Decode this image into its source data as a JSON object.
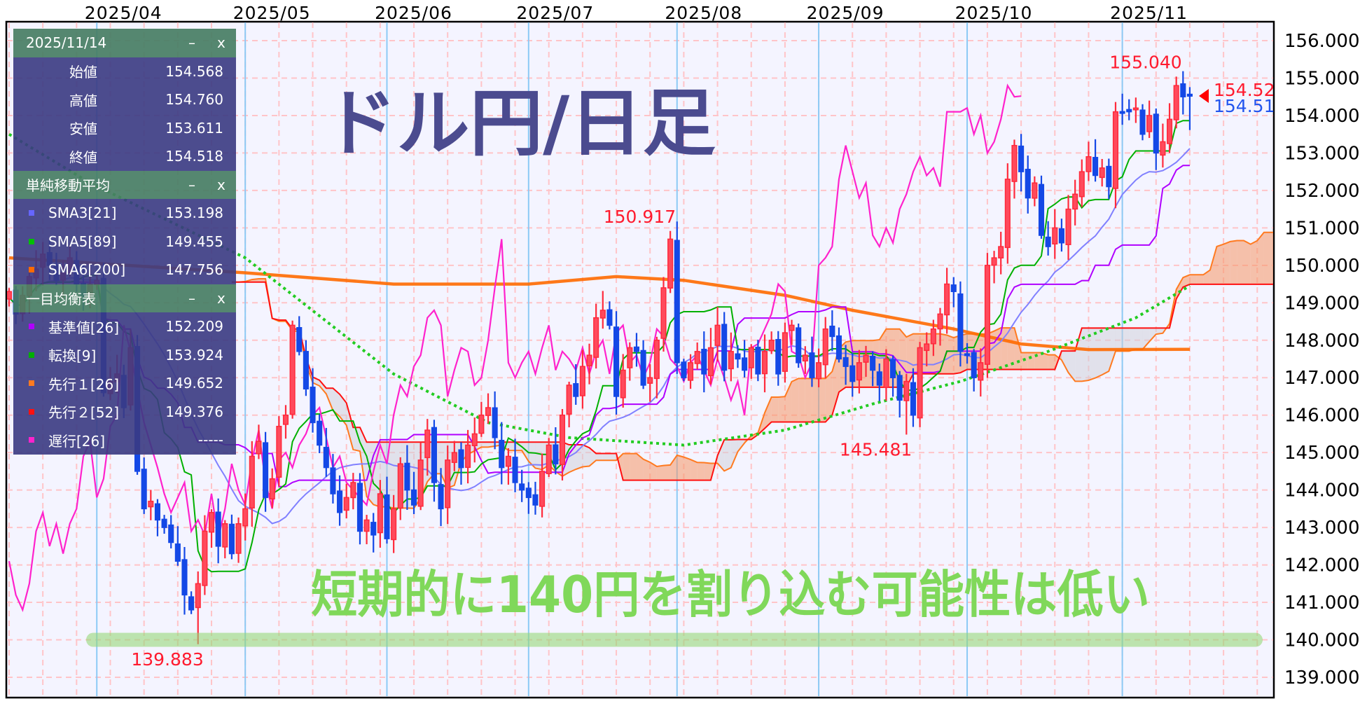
{
  "title": "ドル円/日足",
  "message": "短期的に140円を割り込む可能性は低い",
  "panel": {
    "controls": {
      "minimize": "–",
      "close": "x"
    },
    "ohlc": {
      "date": "2025/11/14",
      "rows": [
        {
          "label": "始値",
          "value": "154.568"
        },
        {
          "label": "高値",
          "value": "154.760"
        },
        {
          "label": "安値",
          "value": "153.611"
        },
        {
          "label": "終値",
          "value": "154.518"
        }
      ]
    },
    "sma": {
      "title": "単純移動平均",
      "rows": [
        {
          "label": "SMA3[21]",
          "value": "153.198",
          "color": "#6666ff"
        },
        {
          "label": "SMA5[89]",
          "value": "149.455",
          "color": "#00c000"
        },
        {
          "label": "SMA6[200]",
          "value": "147.756",
          "color": "#ff6a00"
        }
      ]
    },
    "ichimoku": {
      "title": "一目均衡表",
      "rows": [
        {
          "label": "基準値[26]",
          "value": "152.209",
          "color": "#b000ff"
        },
        {
          "label": "転換[9]",
          "value": "153.924",
          "color": "#00b000"
        },
        {
          "label": "先行１[26]",
          "value": "149.652",
          "color": "#ff7a20"
        },
        {
          "label": "先行２[52]",
          "value": "149.376",
          "color": "#ff1010"
        },
        {
          "label": "遅行[26]",
          "value": "-----",
          "color": "#ff22cc"
        }
      ]
    }
  },
  "chart_data": {
    "type": "candlestick",
    "ylim": [
      138.48,
      156.5
    ],
    "grid": true,
    "price_ticks": [
      "156.000",
      "155.000",
      "154.000",
      "153.000",
      "152.000",
      "151.000",
      "150.000",
      "149.000",
      "148.000",
      "147.000",
      "146.000",
      "145.000",
      "144.000",
      "143.000",
      "142.000",
      "141.000",
      "140.000",
      "139.000"
    ],
    "months": [
      {
        "label": "2025/04",
        "index": 13
      },
      {
        "label": "2025/05",
        "index": 35
      },
      {
        "label": "2025/06",
        "index": 56
      },
      {
        "label": "2025/07",
        "index": 77
      },
      {
        "label": "2025/08",
        "index": 99
      },
      {
        "label": "2025/09",
        "index": 120
      },
      {
        "label": "2025/10",
        "index": 142
      },
      {
        "label": "2025/11",
        "index": 165
      }
    ],
    "closes": [
      149.3,
      148.7,
      149.2,
      149.7,
      149.9,
      150.3,
      150.0,
      149.6,
      149.8,
      150.2,
      149.5,
      149.2,
      149.5,
      149.6,
      146.6,
      146.9,
      147.1,
      146.2,
      147.8,
      144.5,
      143.5,
      143.7,
      143.2,
      143.0,
      142.6,
      142.1,
      141.2,
      140.8,
      141.5,
      142.9,
      143.4,
      142.5,
      143.1,
      142.3,
      143.1,
      143.5,
      144.9,
      145.3,
      143.8,
      144.3,
      145.7,
      146.0,
      148.4,
      147.7,
      146.7,
      145.8,
      145.2,
      144.6,
      143.9,
      143.4,
      143.8,
      144.2,
      142.9,
      143.2,
      142.8,
      143.9,
      142.7,
      143.5,
      144.7,
      144.0,
      143.6,
      144.8,
      145.6,
      144.2,
      143.5,
      144.8,
      145.0,
      144.6,
      145.2,
      145.5,
      146.0,
      146.2,
      145.4,
      144.6,
      144.9,
      144.2,
      144.0,
      143.8,
      143.6,
      144.5,
      145.2,
      144.7,
      146.0,
      146.8,
      146.5,
      147.3,
      147.6,
      148.6,
      148.8,
      148.4,
      146.5,
      147.2,
      147.8,
      147.7,
      146.8,
      147.0,
      148.0,
      149.4,
      150.7,
      147.4,
      147.0,
      147.4,
      147.7,
      147.1,
      147.8,
      148.4,
      147.2,
      147.7,
      147.5,
      147.2,
      147.8,
      147.1,
      147.7,
      148.0,
      147.1,
      148.2,
      148.4,
      147.4,
      147.6,
      147.0,
      147.4,
      148.3,
      148.1,
      147.5,
      147.3,
      146.9,
      147.4,
      147.6,
      147.2,
      146.8,
      147.5,
      147.0,
      146.4,
      146.9,
      146.0,
      147.8,
      147.9,
      148.3,
      148.7,
      149.5,
      149.3,
      147.7,
      147.6,
      147.0,
      147.4,
      150.0,
      150.2,
      150.5,
      152.3,
      153.2,
      152.5,
      151.8,
      152.2,
      150.8,
      150.5,
      151.0,
      150.6,
      151.5,
      151.9,
      152.5,
      152.9,
      152.4,
      152.6,
      152.1,
      154.1,
      154.1,
      154.1,
      154.2,
      153.5,
      154.0,
      153.0,
      153.3,
      153.9,
      154.8,
      154.5,
      154.518
    ],
    "last_bar": {
      "open": 154.568,
      "high": 154.76,
      "low": 153.611,
      "close": 154.518
    },
    "extremes": [
      {
        "label": "139.883",
        "index": 28,
        "type": "low",
        "value": 139.883
      },
      {
        "label": "150.917",
        "index": 98,
        "type": "high",
        "value": 150.917
      },
      {
        "label": "145.481",
        "index": 133,
        "type": "low",
        "value": 145.481
      },
      {
        "label": "155.040",
        "index": 173,
        "type": "high",
        "value": 155.04
      }
    ],
    "sma89": [
      [
        0,
        153.5
      ],
      [
        12,
        152.2
      ],
      [
        35,
        150.2
      ],
      [
        57,
        147.1
      ],
      [
        71,
        145.8
      ],
      [
        83,
        145.4
      ],
      [
        100,
        145.2
      ],
      [
        115,
        145.6
      ],
      [
        128,
        146.3
      ],
      [
        141,
        146.9
      ],
      [
        154,
        147.7
      ],
      [
        167,
        148.6
      ],
      [
        175,
        149.455
      ]
    ],
    "sma200": [
      [
        0,
        150.2
      ],
      [
        35,
        149.8
      ],
      [
        57,
        149.5
      ],
      [
        77,
        149.5
      ],
      [
        90,
        149.7
      ],
      [
        100,
        149.6
      ],
      [
        115,
        149.2
      ],
      [
        125,
        148.8
      ],
      [
        140,
        148.3
      ],
      [
        150,
        147.9
      ],
      [
        160,
        147.75
      ],
      [
        175,
        147.756
      ]
    ],
    "support_level": 140,
    "current_price": {
      "ask": "154.52",
      "bid": "154.51"
    },
    "colors": {
      "up": "#ff2a3c",
      "down": "#1448e6",
      "sma21": "#8080ff",
      "sma89": "#22cc22",
      "sma200": "#ff6a00",
      "tenkan": "#00b000",
      "kijun": "#b000ff",
      "senkou1": "#ff7a20",
      "senkou2": "#ff1010",
      "chikou": "#ff22cc",
      "title": "#4b4b8f",
      "message": "#80d85a"
    }
  }
}
